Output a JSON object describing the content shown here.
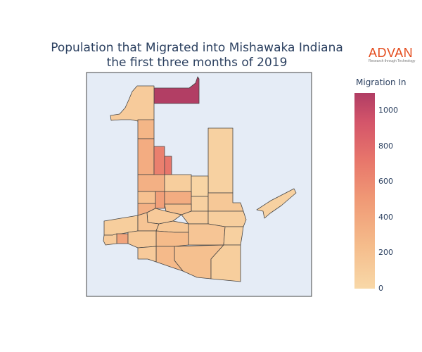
{
  "title": {
    "line1": "Population that Migrated into Mishawaka Indiana",
    "line2": "the first three months of 2019"
  },
  "logo": {
    "word": "ADVAN",
    "tagline": "Research through Technology"
  },
  "colorbar": {
    "title": "Migration In",
    "ticks": [
      "1000",
      "800",
      "600",
      "400",
      "200",
      "0"
    ],
    "range": [
      0,
      1100
    ]
  },
  "colors": {
    "map_bg": "#e5ecf6",
    "border": "#444444",
    "low": "#f8d8a8",
    "high": "#b03d64"
  },
  "regions": [
    {
      "id": "north-top",
      "value": 1090
    },
    {
      "id": "north-left",
      "value": 110
    },
    {
      "id": "col-1",
      "value": 290
    },
    {
      "id": "col-2",
      "value": 360
    },
    {
      "id": "center-tall",
      "value": 660
    },
    {
      "id": "center-tall-b",
      "value": 720
    },
    {
      "id": "east-tall",
      "value": 60
    },
    {
      "id": "mid-a",
      "value": 330
    },
    {
      "id": "mid-b",
      "value": 90
    },
    {
      "id": "mid-c",
      "value": 30
    },
    {
      "id": "mid-d",
      "value": 460
    },
    {
      "id": "mid-e",
      "value": 360
    },
    {
      "id": "mid-f",
      "value": 200
    },
    {
      "id": "mid-g",
      "value": 70
    },
    {
      "id": "mid-h",
      "value": 140
    },
    {
      "id": "mid-i",
      "value": 330
    },
    {
      "id": "s-1",
      "value": 90
    },
    {
      "id": "s-2",
      "value": 210
    },
    {
      "id": "s-3",
      "value": 120
    },
    {
      "id": "s-4",
      "value": 110
    },
    {
      "id": "s-5",
      "value": 170
    },
    {
      "id": "s-6",
      "value": 150
    },
    {
      "id": "s-7",
      "value": 420
    },
    {
      "id": "s-8",
      "value": 110
    },
    {
      "id": "s-9",
      "value": 90
    },
    {
      "id": "s-10",
      "value": 160
    },
    {
      "id": "s-11",
      "value": 250
    },
    {
      "id": "s-12",
      "value": 140
    },
    {
      "id": "s-13",
      "value": 70
    },
    {
      "id": "s-14",
      "value": 210
    },
    {
      "id": "s-15",
      "value": 90
    },
    {
      "id": "s-16",
      "value": 260
    },
    {
      "id": "s-17",
      "value": 120
    },
    {
      "id": "island",
      "value": 60
    }
  ]
}
